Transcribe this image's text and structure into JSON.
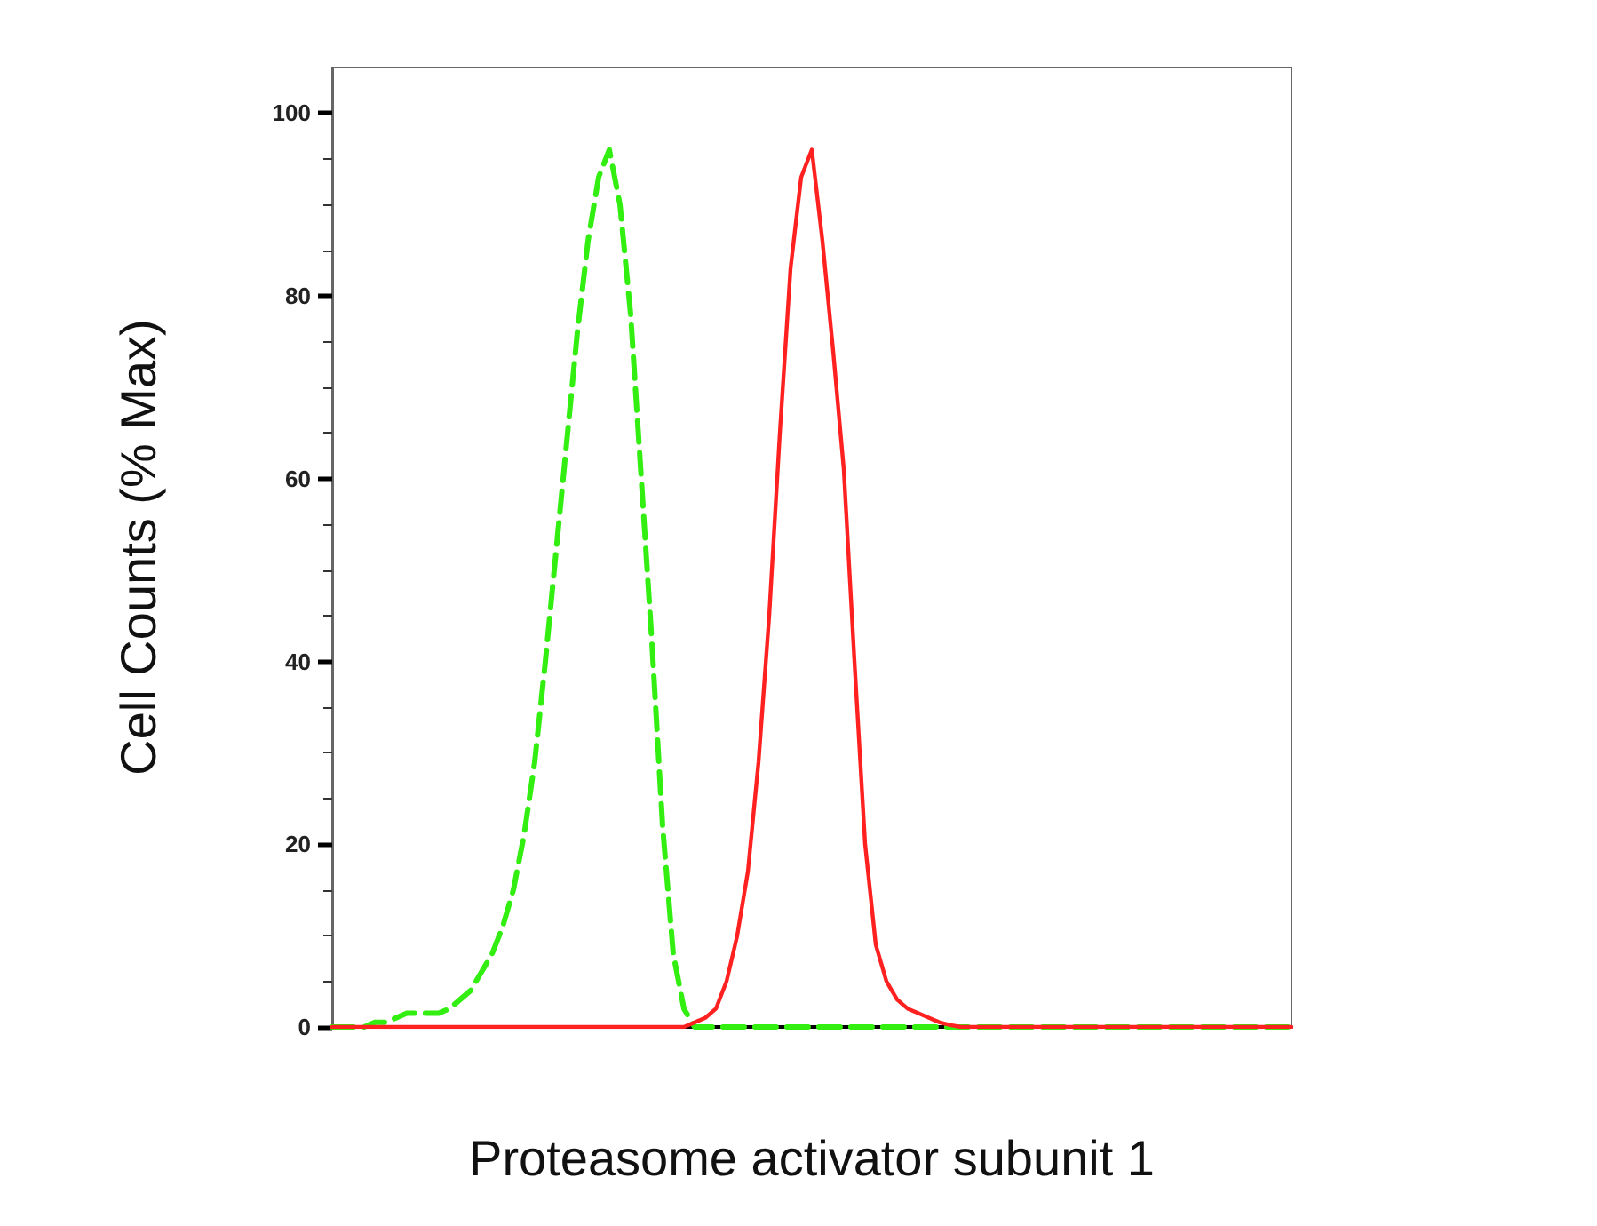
{
  "chart_data": {
    "type": "line",
    "xlabel": "Proteasome activator subunit 1",
    "ylabel": "Cell Counts (% Max)",
    "categories": [
      null,
      null,
      null,
      null,
      null,
      null,
      null,
      null,
      null,
      null,
      null,
      null,
      null,
      null,
      null,
      null,
      null,
      null,
      null,
      null,
      null,
      null,
      null,
      null,
      null,
      null,
      null,
      null,
      null,
      null,
      null,
      null,
      null,
      null,
      null,
      null,
      null,
      null,
      null,
      null,
      null,
      null,
      null,
      null,
      null,
      null,
      null,
      null,
      null,
      null,
      null,
      null,
      null,
      null,
      null,
      null,
      null,
      null,
      null,
      null,
      null,
      null,
      null,
      null,
      null,
      null,
      null,
      null,
      null,
      null,
      null,
      null,
      null,
      null,
      null,
      null,
      null,
      null,
      null,
      null,
      null,
      null,
      null,
      null,
      null,
      null,
      null,
      null,
      null,
      null,
      null
    ],
    "series": [
      {
        "color": "#33ee11",
        "line_style": "dashed",
        "values": [
          0,
          0,
          0,
          0,
          0.5,
          0.5,
          1,
          1.5,
          1.5,
          1.5,
          1.5,
          2,
          3,
          4,
          6,
          8,
          11,
          15,
          21,
          29,
          40,
          52,
          64,
          76,
          86,
          93,
          96,
          90,
          78,
          60,
          42,
          22,
          8,
          2,
          0,
          0,
          0,
          0,
          0,
          0,
          0,
          0,
          0,
          0,
          0,
          0,
          0,
          0,
          0,
          0,
          0,
          0,
          0,
          0,
          0,
          0,
          0,
          0,
          0,
          0,
          0,
          0,
          0,
          0,
          0,
          0,
          0,
          0,
          0,
          0,
          0,
          0,
          0,
          0,
          0,
          0,
          0,
          0,
          0,
          0,
          0,
          0,
          0,
          0,
          0,
          0,
          0,
          0,
          0,
          0,
          0
        ]
      },
      {
        "color": "#ff2020",
        "line_style": "solid",
        "values": [
          0,
          0,
          0,
          0,
          0,
          0,
          0,
          0,
          0,
          0,
          0,
          0,
          0,
          0,
          0,
          0,
          0,
          0,
          0,
          0,
          0,
          0,
          0,
          0,
          0,
          0,
          0,
          0,
          0,
          0,
          0,
          0,
          0,
          0,
          0.5,
          1,
          2,
          5,
          10,
          17,
          29,
          45,
          65,
          83,
          93,
          96,
          86,
          74,
          61,
          40,
          20,
          9,
          5,
          3,
          2,
          1.5,
          1,
          0.5,
          0.2,
          0,
          0,
          0,
          0,
          0,
          0,
          0,
          0,
          0,
          0,
          0,
          0,
          0,
          0,
          0,
          0,
          0,
          0,
          0,
          0,
          0,
          0,
          0,
          0,
          0,
          0,
          0,
          0,
          0,
          0,
          0,
          0
        ]
      }
    ],
    "ylim": [
      0,
      105
    ],
    "yticks": [
      0,
      20,
      40,
      60,
      80,
      100
    ],
    "marker": "none"
  }
}
